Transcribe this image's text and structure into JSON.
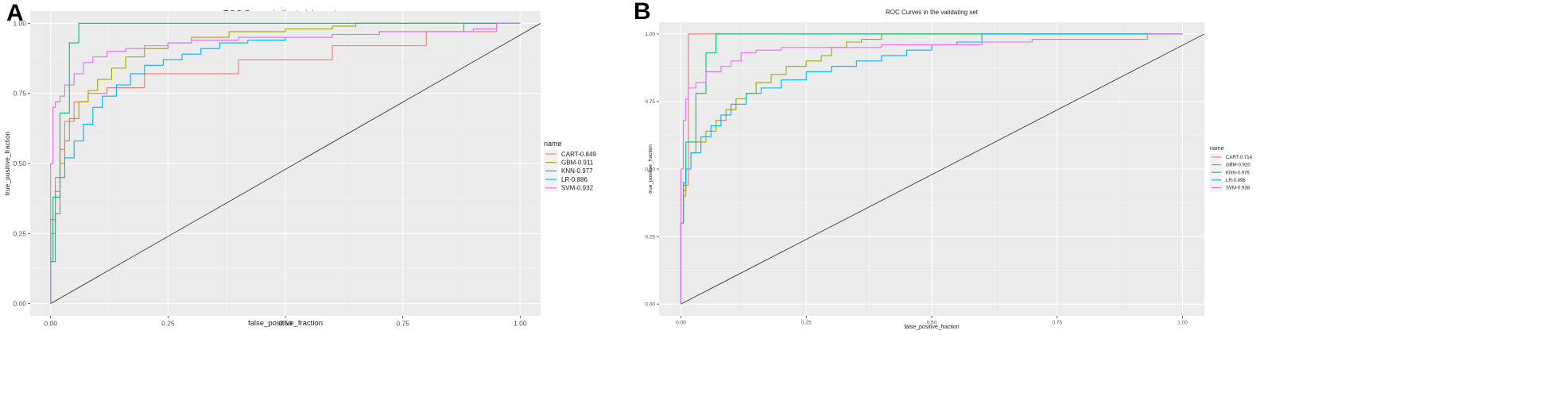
{
  "chart_data": [
    {
      "panel_label": "A",
      "type": "line",
      "title": "ROC Curves in the training set",
      "xlabel": "false_positive_fraction",
      "ylabel": "true_positive_fraction",
      "xlim": [
        0,
        1
      ],
      "ylim": [
        0,
        1
      ],
      "xticks": [
        "0.00",
        "0.25",
        "0.50",
        "0.75",
        "1.00"
      ],
      "yticks": [
        "0.00",
        "0.25",
        "0.50",
        "0.75",
        "1.00"
      ],
      "legend_title": "name",
      "legend_position": "right",
      "diagonal": true,
      "series": [
        {
          "name": "CART-0.849",
          "color": "#F8766D",
          "x": [
            0,
            0.01,
            0.02,
            0.03,
            0.05,
            0.08,
            0.12,
            0.2,
            0.4,
            0.6,
            0.8,
            0.95,
            1
          ],
          "y": [
            0,
            0.3,
            0.45,
            0.55,
            0.65,
            0.72,
            0.75,
            0.77,
            0.82,
            0.87,
            0.92,
            0.97,
            1
          ]
        },
        {
          "name": "GBM-0.911",
          "color": "#A3A500",
          "x": [
            0,
            0.01,
            0.02,
            0.03,
            0.04,
            0.06,
            0.08,
            0.1,
            0.13,
            0.16,
            0.2,
            0.25,
            0.3,
            0.38,
            0.5,
            0.6,
            0.65,
            0.7,
            0.8,
            1
          ],
          "y": [
            0,
            0.25,
            0.4,
            0.5,
            0.58,
            0.66,
            0.72,
            0.76,
            0.8,
            0.84,
            0.88,
            0.91,
            0.93,
            0.95,
            0.97,
            0.98,
            0.99,
            1,
            1,
            1
          ]
        },
        {
          "name": "KNN-0.977",
          "color": "#00BF7D",
          "x": [
            0,
            0.005,
            0.02,
            0.04,
            0.06,
            0.068,
            0.3,
            0.6,
            1
          ],
          "y": [
            0,
            0.15,
            0.38,
            0.68,
            0.93,
            1,
            1,
            1,
            1
          ]
        },
        {
          "name": "LR-0.886",
          "color": "#00B0F6",
          "x": [
            0,
            0.01,
            0.02,
            0.03,
            0.05,
            0.07,
            0.09,
            0.11,
            0.14,
            0.17,
            0.2,
            0.24,
            0.28,
            0.32,
            0.36,
            0.42,
            0.5,
            0.6,
            0.7,
            0.8,
            0.88,
            0.9,
            0.95,
            1
          ],
          "y": [
            0,
            0.15,
            0.32,
            0.45,
            0.52,
            0.58,
            0.64,
            0.7,
            0.74,
            0.78,
            0.82,
            0.85,
            0.87,
            0.89,
            0.91,
            0.93,
            0.94,
            0.95,
            0.96,
            0.97,
            0.97,
            1,
            1,
            1
          ]
        },
        {
          "name": "SVM-0.932",
          "color": "#E76BF3",
          "x": [
            0,
            0.005,
            0.01,
            0.02,
            0.03,
            0.05,
            0.07,
            0.09,
            0.12,
            0.16,
            0.2,
            0.25,
            0.3,
            0.4,
            0.5,
            0.6,
            0.7,
            0.8,
            0.9,
            0.95,
            1
          ],
          "y": [
            0,
            0.5,
            0.7,
            0.72,
            0.74,
            0.78,
            0.82,
            0.86,
            0.88,
            0.9,
            0.91,
            0.92,
            0.93,
            0.94,
            0.95,
            0.95,
            0.96,
            0.97,
            0.97,
            0.98,
            1
          ]
        }
      ]
    },
    {
      "panel_label": "B",
      "type": "line",
      "title": "ROC Curves in the validating set",
      "xlabel": "false_positive_fraction",
      "ylabel": "true_positive_fraction",
      "xlim": [
        0,
        1
      ],
      "ylim": [
        0,
        1
      ],
      "xticks": [
        "0.00",
        "0.25",
        "0.50",
        "0.75",
        "1.00"
      ],
      "yticks": [
        "0.00",
        "0.25",
        "0.50",
        "0.75",
        "1.00"
      ],
      "legend_title": "name",
      "legend_position": "right",
      "diagonal": true,
      "series": [
        {
          "name": "CART-0.714",
          "color": "#F8766D",
          "x": [
            0,
            0.005,
            0.01,
            0.015,
            1
          ],
          "y": [
            0,
            0.3,
            0.4,
            0.44,
            1
          ]
        },
        {
          "name": "GBM-0.920",
          "color": "#A3A500",
          "x": [
            0,
            0.005,
            0.01,
            0.02,
            0.03,
            0.05,
            0.07,
            0.09,
            0.11,
            0.13,
            0.15,
            0.18,
            0.21,
            0.25,
            0.28,
            0.3,
            0.33,
            0.36,
            0.4,
            0.43,
            0.5,
            1
          ],
          "y": [
            0,
            0.3,
            0.42,
            0.5,
            0.56,
            0.6,
            0.64,
            0.68,
            0.72,
            0.76,
            0.78,
            0.82,
            0.85,
            0.88,
            0.9,
            0.92,
            0.95,
            0.97,
            0.98,
            1,
            1,
            1
          ]
        },
        {
          "name": "KNN-0.976",
          "color": "#00BF7D",
          "x": [
            0,
            0.005,
            0.01,
            0.03,
            0.05,
            0.07,
            0.08,
            0.4,
            1
          ],
          "y": [
            0,
            0.3,
            0.45,
            0.6,
            0.78,
            0.93,
            1,
            1,
            1
          ]
        },
        {
          "name": "LR-0.896",
          "color": "#00B0F6",
          "x": [
            0,
            0.005,
            0.01,
            0.02,
            0.04,
            0.06,
            0.08,
            0.1,
            0.13,
            0.16,
            0.2,
            0.25,
            0.3,
            0.35,
            0.4,
            0.45,
            0.5,
            0.55,
            0.6,
            0.63,
            0.7,
            0.8,
            0.9,
            0.93,
            1
          ],
          "y": [
            0,
            0.3,
            0.44,
            0.5,
            0.56,
            0.62,
            0.66,
            0.7,
            0.74,
            0.78,
            0.8,
            0.83,
            0.86,
            0.88,
            0.9,
            0.92,
            0.94,
            0.96,
            0.97,
            1,
            1,
            1,
            1,
            1,
            1
          ]
        },
        {
          "name": "SVM-0.938",
          "color": "#E76BF3",
          "x": [
            0,
            0.005,
            0.01,
            0.015,
            0.03,
            0.05,
            0.08,
            0.1,
            0.12,
            0.15,
            0.2,
            0.3,
            0.4,
            0.5,
            0.6,
            0.7,
            0.8,
            0.9,
            0.93,
            1
          ],
          "y": [
            0,
            0.5,
            0.68,
            0.76,
            0.8,
            0.82,
            0.86,
            0.88,
            0.9,
            0.93,
            0.94,
            0.95,
            0.95,
            0.96,
            0.96,
            0.97,
            0.98,
            0.98,
            0.98,
            1
          ]
        }
      ]
    }
  ]
}
